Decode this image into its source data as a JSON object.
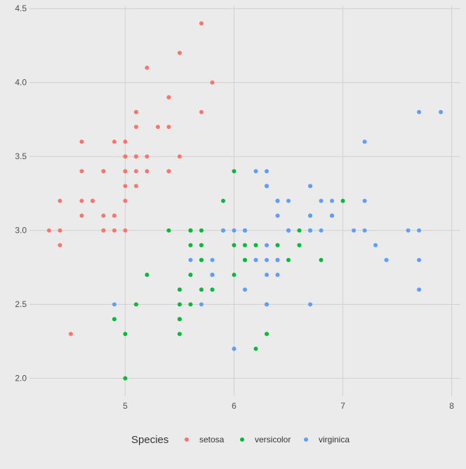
{
  "chart_data": {
    "type": "scatter",
    "title": "",
    "xlabel": "",
    "ylabel": "",
    "xlim": [
      4.12,
      8.08
    ],
    "ylim": [
      1.88,
      4.52
    ],
    "x_ticks": [
      5,
      6,
      7,
      8
    ],
    "y_ticks": [
      2.0,
      2.5,
      3.0,
      3.5,
      4.0,
      4.5
    ],
    "x_tick_labels": [
      "5",
      "6",
      "7",
      "8"
    ],
    "y_tick_labels": [
      "2.0",
      "2.5",
      "3.0",
      "3.5",
      "4.0",
      "4.5"
    ],
    "grid": true,
    "legend_position": "bottom",
    "legend_title": "Species",
    "series": [
      {
        "name": "setosa",
        "color": "#f8766d",
        "points": [
          [
            5.1,
            3.5
          ],
          [
            4.9,
            3.0
          ],
          [
            4.7,
            3.2
          ],
          [
            4.6,
            3.1
          ],
          [
            5.0,
            3.6
          ],
          [
            5.4,
            3.9
          ],
          [
            4.6,
            3.4
          ],
          [
            5.0,
            3.4
          ],
          [
            4.4,
            2.9
          ],
          [
            4.9,
            3.1
          ],
          [
            5.4,
            3.7
          ],
          [
            4.8,
            3.4
          ],
          [
            4.8,
            3.0
          ],
          [
            4.3,
            3.0
          ],
          [
            5.8,
            4.0
          ],
          [
            5.7,
            4.4
          ],
          [
            5.4,
            3.9
          ],
          [
            5.1,
            3.5
          ],
          [
            5.7,
            3.8
          ],
          [
            5.1,
            3.8
          ],
          [
            5.4,
            3.4
          ],
          [
            5.1,
            3.7
          ],
          [
            4.6,
            3.6
          ],
          [
            5.1,
            3.3
          ],
          [
            4.8,
            3.4
          ],
          [
            5.0,
            3.0
          ],
          [
            5.0,
            3.4
          ],
          [
            5.2,
            3.5
          ],
          [
            5.2,
            3.4
          ],
          [
            4.7,
            3.2
          ],
          [
            4.8,
            3.1
          ],
          [
            5.4,
            3.4
          ],
          [
            5.2,
            4.1
          ],
          [
            5.5,
            4.2
          ],
          [
            4.9,
            3.1
          ],
          [
            5.0,
            3.2
          ],
          [
            5.5,
            3.5
          ],
          [
            4.9,
            3.6
          ],
          [
            4.4,
            3.0
          ],
          [
            5.1,
            3.4
          ],
          [
            5.0,
            3.5
          ],
          [
            4.5,
            2.3
          ],
          [
            4.4,
            3.2
          ],
          [
            5.0,
            3.5
          ],
          [
            5.1,
            3.8
          ],
          [
            4.8,
            3.0
          ],
          [
            5.1,
            3.8
          ],
          [
            4.6,
            3.2
          ],
          [
            5.3,
            3.7
          ],
          [
            5.0,
            3.3
          ]
        ]
      },
      {
        "name": "versicolor",
        "color": "#00ba38",
        "points": [
          [
            7.0,
            3.2
          ],
          [
            6.4,
            3.2
          ],
          [
            6.9,
            3.1
          ],
          [
            5.5,
            2.3
          ],
          [
            6.5,
            2.8
          ],
          [
            5.7,
            2.8
          ],
          [
            6.3,
            3.3
          ],
          [
            4.9,
            2.4
          ],
          [
            6.6,
            2.9
          ],
          [
            5.2,
            2.7
          ],
          [
            5.0,
            2.0
          ],
          [
            5.9,
            3.0
          ],
          [
            6.0,
            2.2
          ],
          [
            6.1,
            2.9
          ],
          [
            5.6,
            2.9
          ],
          [
            6.7,
            3.1
          ],
          [
            5.6,
            3.0
          ],
          [
            5.8,
            2.7
          ],
          [
            6.2,
            2.2
          ],
          [
            5.6,
            2.5
          ],
          [
            5.9,
            3.2
          ],
          [
            6.1,
            2.8
          ],
          [
            6.3,
            2.5
          ],
          [
            6.1,
            2.8
          ],
          [
            6.4,
            2.9
          ],
          [
            6.6,
            3.0
          ],
          [
            6.8,
            2.8
          ],
          [
            6.7,
            3.0
          ],
          [
            6.0,
            2.9
          ],
          [
            5.7,
            2.6
          ],
          [
            5.5,
            2.4
          ],
          [
            5.5,
            2.4
          ],
          [
            5.8,
            2.7
          ],
          [
            6.0,
            2.7
          ],
          [
            5.4,
            3.0
          ],
          [
            6.0,
            3.4
          ],
          [
            6.7,
            3.1
          ],
          [
            6.3,
            2.3
          ],
          [
            5.6,
            3.0
          ],
          [
            5.5,
            2.5
          ],
          [
            5.5,
            2.6
          ],
          [
            6.1,
            3.0
          ],
          [
            5.8,
            2.6
          ],
          [
            5.0,
            2.3
          ],
          [
            5.6,
            2.7
          ],
          [
            5.7,
            3.0
          ],
          [
            5.7,
            2.9
          ],
          [
            6.2,
            2.9
          ],
          [
            5.1,
            2.5
          ],
          [
            5.7,
            2.8
          ]
        ]
      },
      {
        "name": "virginica",
        "color": "#619cff",
        "points": [
          [
            6.3,
            3.3
          ],
          [
            5.8,
            2.7
          ],
          [
            7.1,
            3.0
          ],
          [
            6.3,
            2.9
          ],
          [
            6.5,
            3.0
          ],
          [
            7.6,
            3.0
          ],
          [
            4.9,
            2.5
          ],
          [
            7.3,
            2.9
          ],
          [
            6.7,
            2.5
          ],
          [
            7.2,
            3.6
          ],
          [
            6.5,
            3.2
          ],
          [
            6.4,
            2.7
          ],
          [
            6.8,
            3.0
          ],
          [
            5.7,
            2.5
          ],
          [
            5.8,
            2.8
          ],
          [
            6.4,
            3.2
          ],
          [
            6.5,
            3.0
          ],
          [
            7.7,
            3.8
          ],
          [
            7.7,
            2.6
          ],
          [
            6.0,
            2.2
          ],
          [
            6.9,
            3.2
          ],
          [
            5.6,
            2.8
          ],
          [
            7.7,
            2.8
          ],
          [
            6.3,
            2.7
          ],
          [
            6.7,
            3.3
          ],
          [
            7.2,
            3.2
          ],
          [
            6.2,
            2.8
          ],
          [
            6.1,
            3.0
          ],
          [
            6.4,
            2.8
          ],
          [
            7.2,
            3.0
          ],
          [
            7.4,
            2.8
          ],
          [
            7.9,
            3.8
          ],
          [
            6.4,
            2.8
          ],
          [
            6.3,
            2.8
          ],
          [
            6.1,
            2.6
          ],
          [
            7.7,
            3.0
          ],
          [
            6.3,
            3.4
          ],
          [
            6.4,
            3.1
          ],
          [
            6.0,
            3.0
          ],
          [
            6.9,
            3.1
          ],
          [
            6.7,
            3.1
          ],
          [
            6.9,
            3.1
          ],
          [
            5.8,
            2.7
          ],
          [
            6.8,
            3.2
          ],
          [
            6.7,
            3.3
          ],
          [
            6.7,
            3.0
          ],
          [
            6.3,
            2.5
          ],
          [
            6.5,
            3.0
          ],
          [
            6.2,
            3.4
          ],
          [
            5.9,
            3.0
          ]
        ]
      }
    ]
  }
}
